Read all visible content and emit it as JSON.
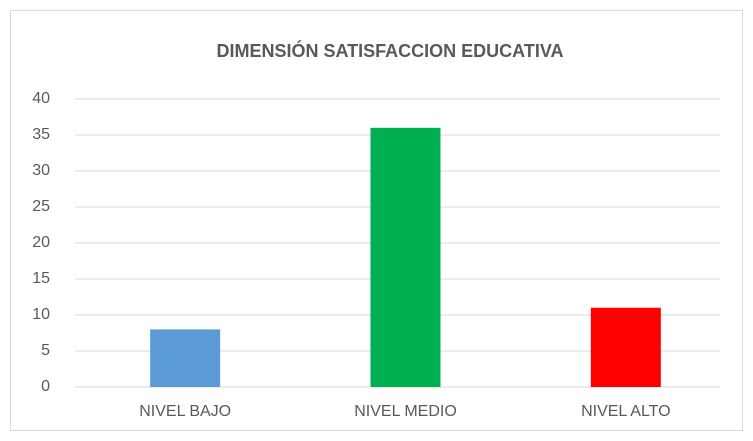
{
  "chart_data": {
    "type": "bar",
    "title": "DIMENSIÓN SATISFACCION EDUCATIVA",
    "categories": [
      "NIVEL BAJO",
      "NIVEL MEDIO",
      "NIVEL ALTO"
    ],
    "values": [
      8,
      36,
      11
    ],
    "colors": [
      "#5b9bd5",
      "#00b050",
      "#ff0000"
    ],
    "ylim": [
      0,
      40
    ],
    "yticks": [
      0,
      5,
      10,
      15,
      20,
      25,
      30,
      35,
      40
    ],
    "grid": true
  }
}
